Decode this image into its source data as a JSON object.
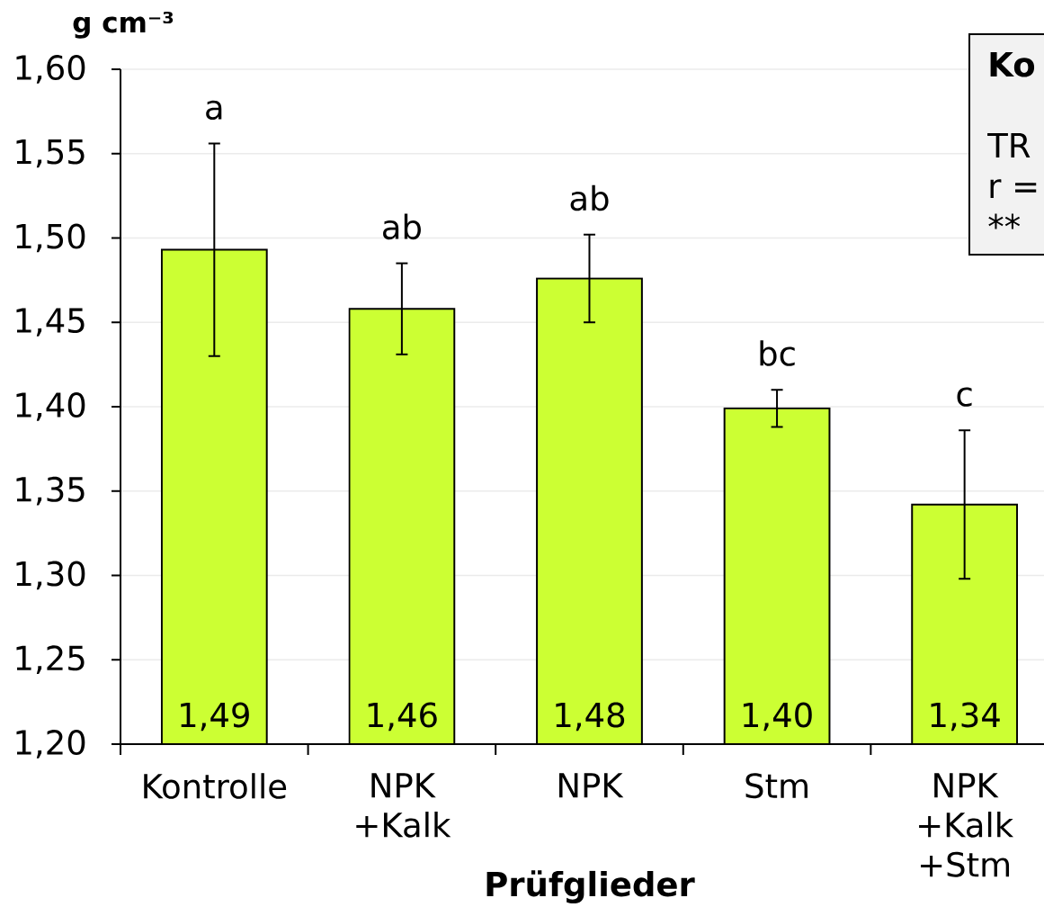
{
  "chart_data": {
    "type": "bar",
    "xlabel": "Prüfglieder",
    "ylabel": "g cm⁻³",
    "categories": [
      "Kontrolle",
      "NPK +Kalk",
      "NPK",
      "Stm",
      "NPK +Kalk +Stm"
    ],
    "values": [
      1.493,
      1.458,
      1.476,
      1.399,
      1.342
    ],
    "errors": [
      0.063,
      0.027,
      0.026,
      0.011,
      0.044
    ],
    "value_labels": [
      "1,49",
      "1,46",
      "1,48",
      "1,40",
      "1,34"
    ],
    "color": "#ccff33",
    "ylim": [
      1.2,
      1.6
    ],
    "yticks": [
      {
        "value": 1.2,
        "label": "1,20"
      },
      {
        "value": 1.25,
        "label": "1,25"
      },
      {
        "value": 1.3,
        "label": "1,30"
      },
      {
        "value": 1.35,
        "label": "1,35"
      },
      {
        "value": 1.4,
        "label": "1,40"
      },
      {
        "value": 1.45,
        "label": "1,45"
      },
      {
        "value": 1.5,
        "label": "1,50"
      },
      {
        "value": 1.55,
        "label": "1,55"
      },
      {
        "value": 1.6,
        "label": "1,60"
      }
    ],
    "grid": "y",
    "annotations": [
      "a",
      "ab",
      "ab",
      "bc",
      "c",
      "Ko",
      "TR",
      "r =",
      "**"
    ]
  }
}
